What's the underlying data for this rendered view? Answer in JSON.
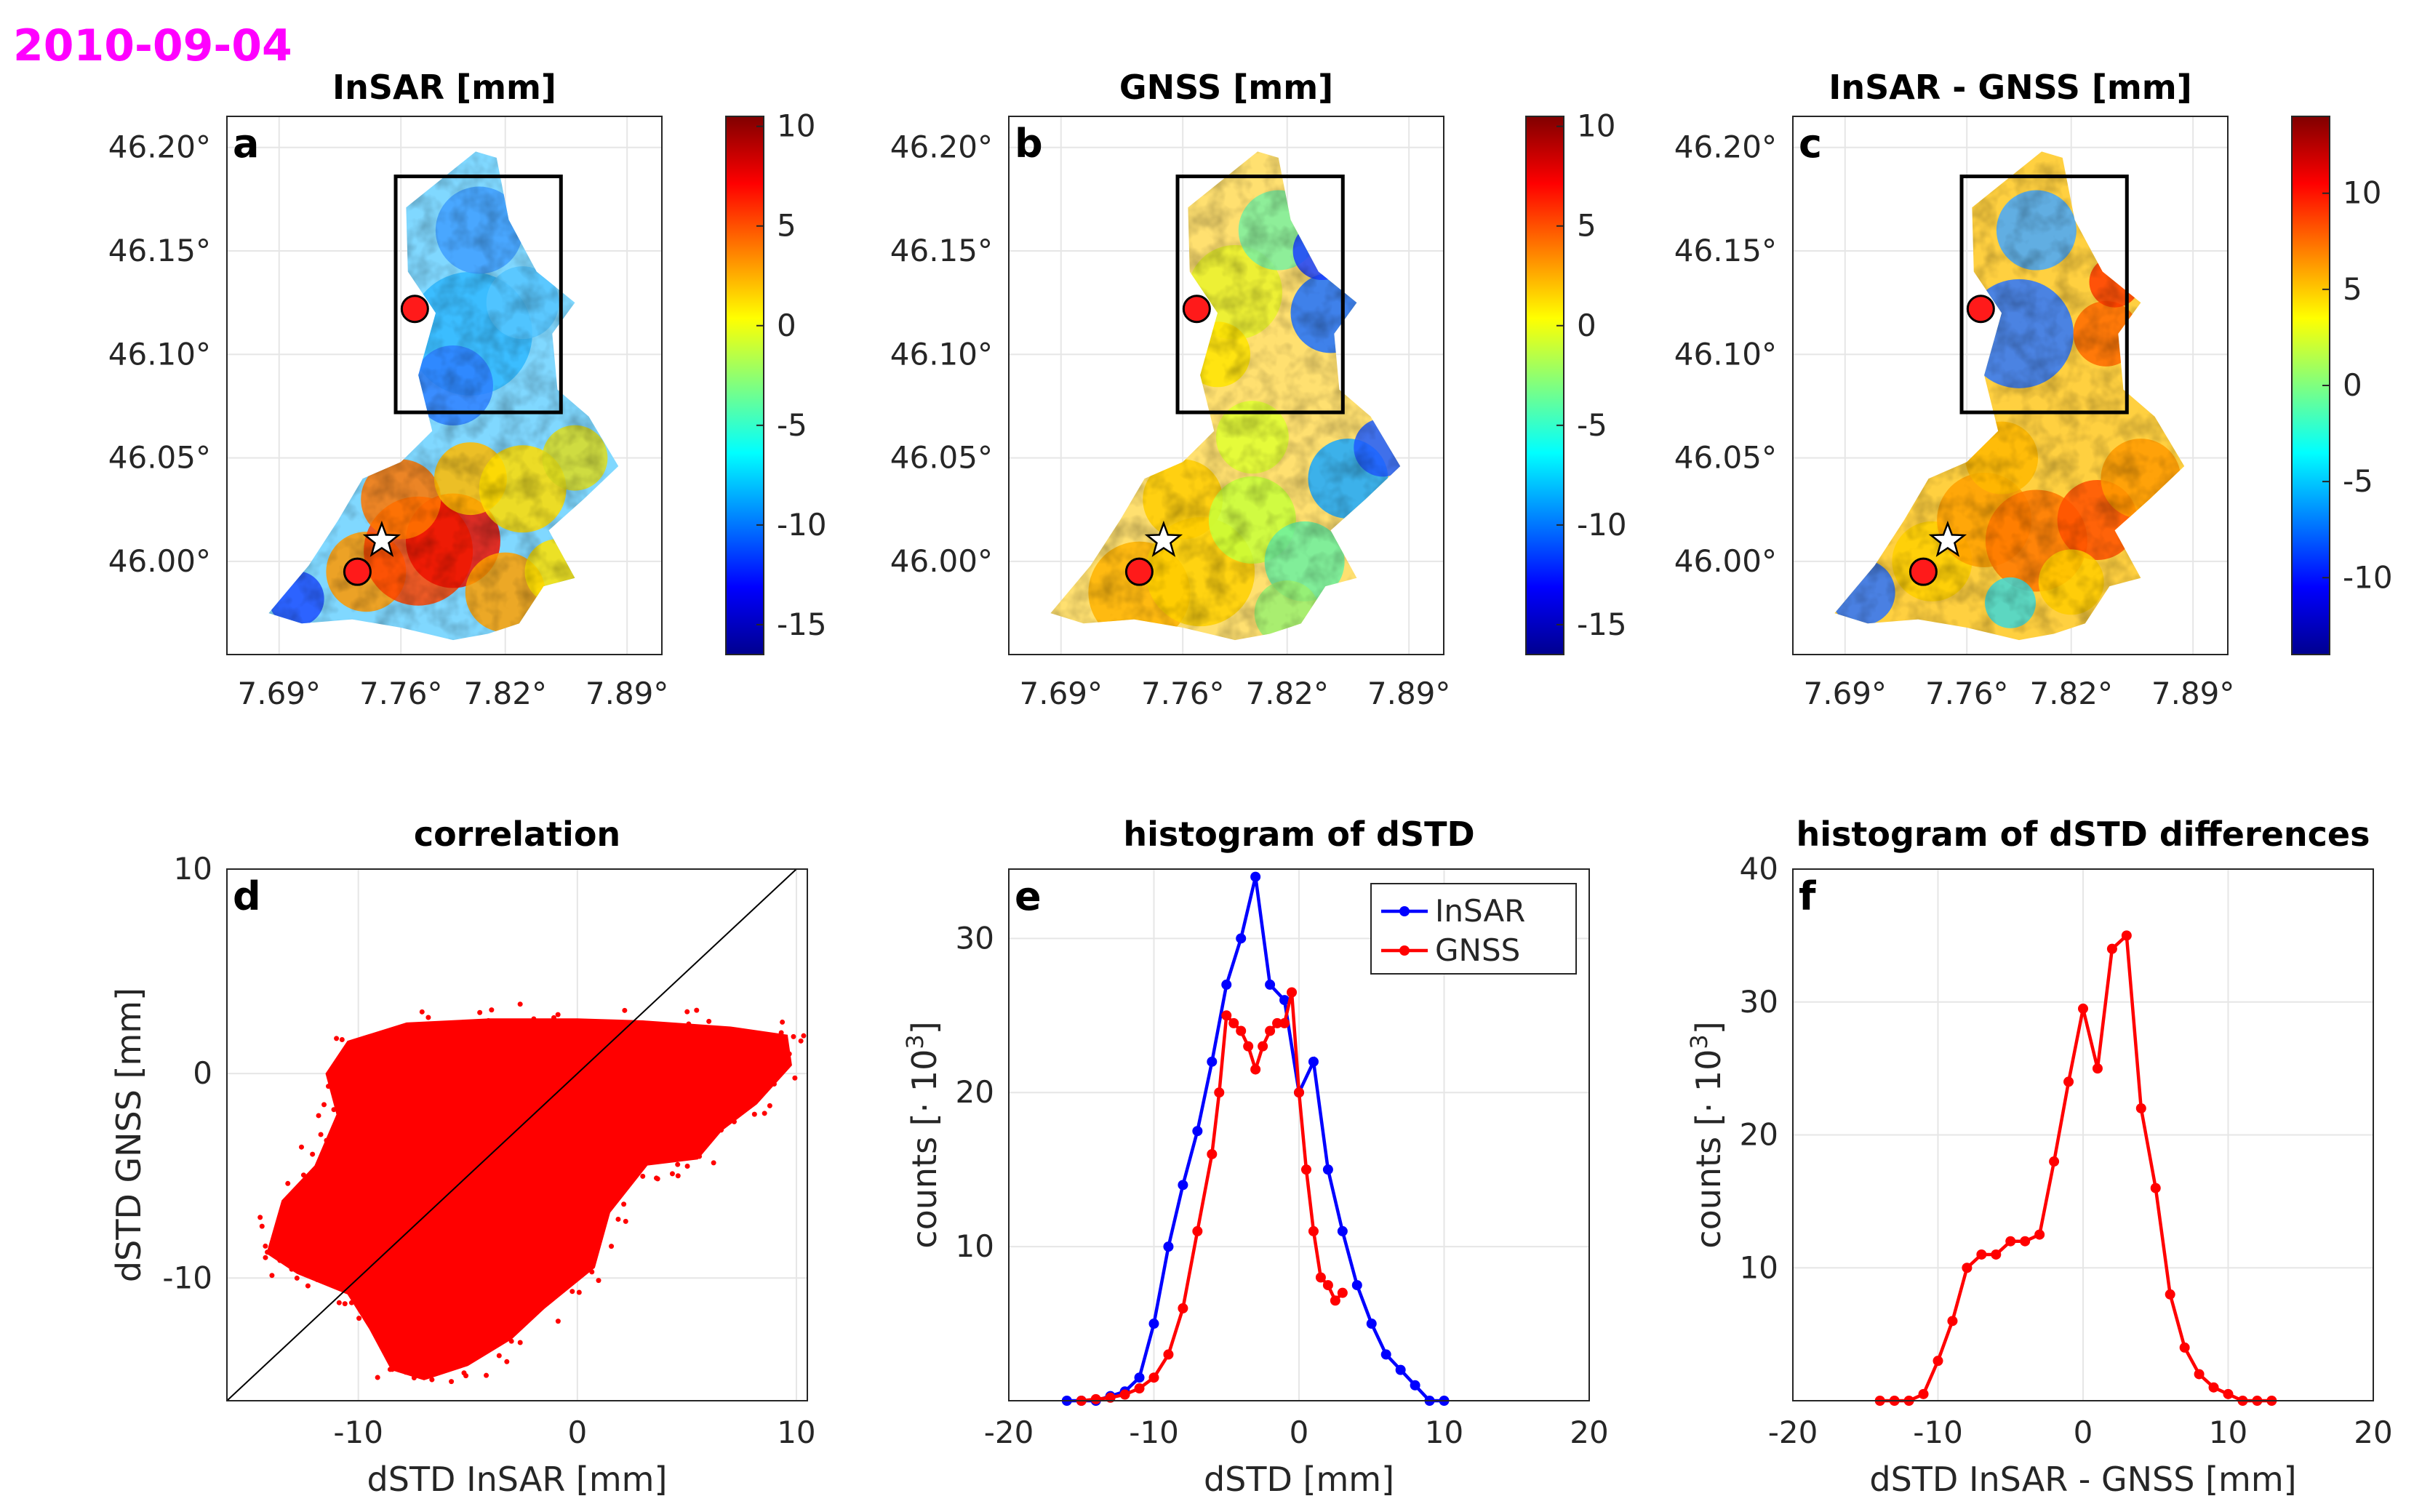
{
  "date": "2010-09-04",
  "colors": {
    "insar": "#0000ff",
    "gnss": "#ff0000",
    "date": "#ff00ff"
  },
  "chart_data": [
    {
      "id": "a",
      "type": "heatmap",
      "title": "InSAR [mm]",
      "xlabel": "",
      "ylabel": "",
      "xticks": [
        "7.69°",
        "7.76°",
        "7.82°",
        "7.89°"
      ],
      "yticks": [
        "46.20°",
        "46.15°",
        "46.10°",
        "46.05°",
        "46.00°"
      ],
      "xlim": [
        7.66,
        7.91
      ],
      "ylim": [
        45.955,
        46.215
      ],
      "colorbar": {
        "range": [
          -16.5,
          10.5
        ],
        "ticks": [
          10,
          5,
          0,
          -5,
          -10,
          -15
        ],
        "unit": "mm"
      },
      "markers": {
        "gnss_stations": [
          [
            7.768,
            46.122
          ],
          [
            7.735,
            45.995
          ]
        ],
        "epicenter_star": [
          7.749,
          46.01
        ],
        "box": {
          "lon": [
            7.757,
            7.852
          ],
          "lat": [
            46.072,
            46.186
          ]
        }
      }
    },
    {
      "id": "b",
      "type": "heatmap",
      "title": "GNSS [mm]",
      "xticks": [
        "7.69°",
        "7.76°",
        "7.82°",
        "7.89°"
      ],
      "yticks": [
        "46.20°",
        "46.15°",
        "46.10°",
        "46.05°",
        "46.00°"
      ],
      "xlim": [
        7.66,
        7.91
      ],
      "ylim": [
        45.955,
        46.215
      ],
      "colorbar": {
        "range": [
          -16.5,
          10.5
        ],
        "ticks": [
          10,
          5,
          0,
          -5,
          -10,
          -15
        ],
        "unit": "mm"
      },
      "markers": {
        "gnss_stations": [
          [
            7.768,
            46.122
          ],
          [
            7.735,
            45.995
          ]
        ],
        "epicenter_star": [
          7.749,
          46.01
        ],
        "box": {
          "lon": [
            7.757,
            7.852
          ],
          "lat": [
            46.072,
            46.186
          ]
        }
      }
    },
    {
      "id": "c",
      "type": "heatmap",
      "title": "InSAR - GNSS [mm]",
      "xticks": [
        "7.69°",
        "7.76°",
        "7.82°",
        "7.89°"
      ],
      "yticks": [
        "46.20°",
        "46.15°",
        "46.10°",
        "46.05°",
        "46.00°"
      ],
      "xlim": [
        7.66,
        7.91
      ],
      "ylim": [
        45.955,
        46.215
      ],
      "colorbar": {
        "range": [
          -14,
          14
        ],
        "ticks": [
          10,
          5,
          0,
          -5,
          -10
        ],
        "unit": "mm"
      },
      "markers": {
        "gnss_stations": [
          [
            7.768,
            46.122
          ],
          [
            7.735,
            45.995
          ]
        ],
        "epicenter_star": [
          7.749,
          46.01
        ],
        "box": {
          "lon": [
            7.757,
            7.852
          ],
          "lat": [
            46.072,
            46.186
          ]
        }
      }
    },
    {
      "id": "d",
      "type": "scatter",
      "title": "correlation",
      "xlabel": "dSTD InSAR [mm]",
      "ylabel": "dSTD GNSS [mm]",
      "xlim": [
        -16,
        10.5
      ],
      "ylim": [
        -16,
        10
      ],
      "xticks": [
        -10,
        0,
        10
      ],
      "yticks": [
        10,
        0,
        -10
      ],
      "reference_line": "y = x",
      "note": "dense point cloud of InSAR vs GNSS dSTD pairs"
    },
    {
      "id": "e",
      "type": "line",
      "title": "histogram of dSTD",
      "xlabel": "dSTD [mm]",
      "ylabel": "counts [· 10³]",
      "ylabel_base": "counts [· 10",
      "ylabel_exp": "3",
      "ylabel_close": "]",
      "xlim": [
        -20,
        20
      ],
      "ylim": [
        0,
        34.5
      ],
      "xticks": [
        -20,
        -10,
        0,
        10,
        20
      ],
      "yticks": [
        10,
        20,
        30
      ],
      "legend": "top-right",
      "series": [
        {
          "name": "InSAR",
          "color": "#0000ff",
          "x": [
            -16,
            -15,
            -14,
            -13,
            -12,
            -11,
            -10,
            -9,
            -8,
            -7,
            -6,
            -5,
            -4,
            -3,
            -2,
            -1,
            0,
            1,
            2,
            3,
            4,
            5,
            6,
            7,
            8,
            9,
            10
          ],
          "y": [
            0,
            0,
            0,
            0.3,
            0.6,
            1.5,
            5,
            10,
            14,
            17.5,
            22,
            27,
            30,
            34,
            27,
            26,
            20,
            22,
            15,
            11,
            7.5,
            5,
            3,
            2,
            1,
            0,
            0
          ]
        },
        {
          "name": "GNSS",
          "color": "#ff0000",
          "x": [
            -15,
            -14,
            -13,
            -12,
            -11,
            -10,
            -9,
            -8,
            -7,
            -6,
            -5.5,
            -5,
            -4.5,
            -4,
            -3.5,
            -3,
            -2.5,
            -2,
            -1.5,
            -1,
            -0.5,
            0,
            0.5,
            1,
            1.5,
            2,
            2.5,
            3
          ],
          "y": [
            0,
            0.1,
            0.2,
            0.4,
            0.8,
            1.5,
            3,
            6,
            11,
            16,
            20,
            25,
            24.5,
            24,
            23,
            21.5,
            23,
            24,
            24.5,
            24.5,
            26.5,
            20,
            15,
            11,
            8,
            7.5,
            6.5,
            7
          ]
        }
      ]
    },
    {
      "id": "f",
      "type": "line",
      "title": "histogram of dSTD differences",
      "xlabel": "dSTD InSAR - GNSS [mm]",
      "ylabel": "counts [· 10³]",
      "ylabel_base": "counts [· 10",
      "ylabel_exp": "3",
      "ylabel_close": "]",
      "xlim": [
        -20,
        20
      ],
      "ylim": [
        0,
        40
      ],
      "xticks": [
        -20,
        -10,
        0,
        10,
        20
      ],
      "yticks": [
        40,
        30,
        20,
        10
      ],
      "series": [
        {
          "name": "InSAR - GNSS",
          "color": "#ff0000",
          "x": [
            -14,
            -13,
            -12,
            -11,
            -10,
            -9,
            -8,
            -7,
            -6,
            -5,
            -4,
            -3,
            -2,
            -1,
            0,
            1,
            2,
            3,
            4,
            5,
            6,
            7,
            8,
            9,
            10,
            11,
            12,
            13
          ],
          "y": [
            0,
            0,
            0,
            0.5,
            3,
            6,
            10,
            11,
            11,
            12,
            12,
            12.5,
            18,
            24,
            29.5,
            25,
            34,
            35,
            22,
            16,
            8,
            4,
            2,
            1,
            0.5,
            0,
            0,
            0
          ]
        }
      ]
    }
  ]
}
